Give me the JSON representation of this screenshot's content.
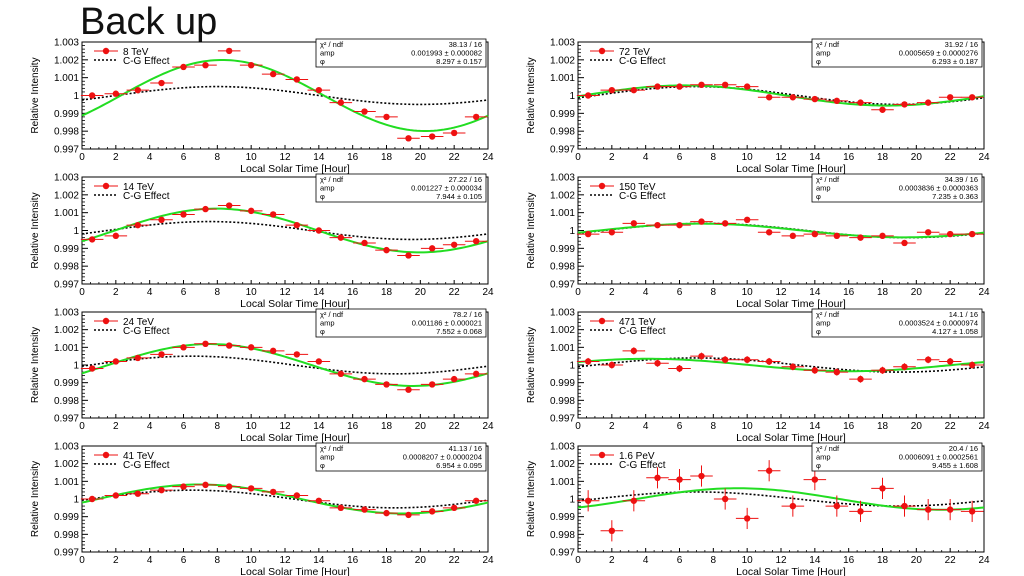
{
  "slide": {
    "title": "Back up"
  },
  "colors": {
    "fit": "#22dd22",
    "data": "#ee1111",
    "reference": "#000000",
    "axis": "#000000"
  },
  "chart_data": [
    {
      "type": "scatter",
      "energy": "8 TeV",
      "xlabel": "Local Solar Time [Hour]",
      "ylabel": "Relative Intensity",
      "xlim": [
        0,
        24
      ],
      "ylim": [
        0.997,
        1.003
      ],
      "xticks": [
        "0",
        "2",
        "4",
        "6",
        "8",
        "10",
        "12",
        "14",
        "16",
        "18",
        "20",
        "22",
        "24"
      ],
      "yticks": [
        "0.997",
        "0.998",
        "0.999",
        "1",
        "1.001",
        "1.002",
        "1.003"
      ],
      "legend": [
        "8 TeV",
        "C-G Effect"
      ],
      "stats": {
        "chi2_label": "χ² / ndf",
        "chi2": "38.13 / 16",
        "amp_label": "amp",
        "amp": "0.001993 ± 0.000082",
        "phi_label": "φ",
        "phi": "8.297 ± 0.157"
      },
      "fit": {
        "amp": 0.001993,
        "phase": 8.297
      },
      "cg": {
        "amp": 0.0005,
        "phase": 8.0
      },
      "x": [
        0.6,
        2.0,
        3.3,
        4.7,
        6.0,
        7.3,
        8.7,
        10.0,
        11.3,
        12.7,
        14.0,
        15.3,
        16.7,
        18.0,
        19.3,
        20.7,
        22.0,
        23.3
      ],
      "y": [
        1.0,
        1.0001,
        1.0003,
        1.0007,
        1.0016,
        1.0017,
        1.0025,
        1.0017,
        1.0012,
        1.0009,
        1.0003,
        0.9996,
        0.9991,
        0.9988,
        0.9976,
        0.9977,
        0.9979,
        0.9988
      ],
      "yerr": [
        0.0001,
        0.0001,
        0.0001,
        0.0001,
        0.0001,
        0.0001,
        0.0001,
        0.0001,
        0.0001,
        0.0001,
        0.0001,
        0.0001,
        0.0001,
        0.0001,
        0.0001,
        0.0001,
        0.0001,
        0.0001
      ]
    },
    {
      "type": "scatter",
      "energy": "72 TeV",
      "xlabel": "Local Solar Time [Hour]",
      "ylabel": "Relative Intensity",
      "xlim": [
        0,
        24
      ],
      "ylim": [
        0.997,
        1.003
      ],
      "xticks": [
        "0",
        "2",
        "4",
        "6",
        "8",
        "10",
        "12",
        "14",
        "16",
        "18",
        "20",
        "22",
        "24"
      ],
      "yticks": [
        "0.997",
        "0.998",
        "0.999",
        "1",
        "1.001",
        "1.002",
        "1.003"
      ],
      "legend": [
        "72 TeV",
        "C-G Effect"
      ],
      "stats": {
        "chi2_label": "χ² / ndf",
        "chi2": "31.92 / 16",
        "amp_label": "amp",
        "amp": "0.0005659 ± 0.0000276",
        "phi_label": "φ",
        "phi": "6.293 ± 0.187"
      },
      "fit": {
        "amp": 0.0005659,
        "phase": 6.293
      },
      "cg": {
        "amp": 0.0005,
        "phase": 7.0
      },
      "x": [
        0.6,
        2.0,
        3.3,
        4.7,
        6.0,
        7.3,
        8.7,
        10.0,
        11.3,
        12.7,
        14.0,
        15.3,
        16.7,
        18.0,
        19.3,
        20.7,
        22.0,
        23.3
      ],
      "y": [
        1.0,
        1.0003,
        1.0003,
        1.0005,
        1.0005,
        1.0006,
        1.0006,
        1.0005,
        0.9999,
        0.9999,
        0.9998,
        0.9997,
        0.9996,
        0.9992,
        0.9995,
        0.9996,
        0.9999,
        0.9999
      ],
      "yerr": [
        0.0001,
        0.0001,
        0.0001,
        0.0001,
        0.0001,
        0.0001,
        0.0001,
        0.0001,
        0.0001,
        0.0001,
        0.0001,
        0.0001,
        0.0001,
        0.0001,
        0.0001,
        0.0001,
        0.0001,
        0.0001
      ]
    },
    {
      "type": "scatter",
      "energy": "14 TeV",
      "xlabel": "Local Solar Time [Hour]",
      "ylabel": "Relative Intensity",
      "xlim": [
        0,
        24
      ],
      "ylim": [
        0.997,
        1.003
      ],
      "xticks": [
        "0",
        "2",
        "4",
        "6",
        "8",
        "10",
        "12",
        "14",
        "16",
        "18",
        "20",
        "22",
        "24"
      ],
      "yticks": [
        "0.997",
        "0.998",
        "0.999",
        "1",
        "1.001",
        "1.002",
        "1.003"
      ],
      "legend": [
        "14 TeV",
        "C-G Effect"
      ],
      "stats": {
        "chi2_label": "χ² / ndf",
        "chi2": "27.22 / 16",
        "amp_label": "amp",
        "amp": "0.001227 ± 0.000034",
        "phi_label": "φ",
        "phi": "7.944 ± 0.105"
      },
      "fit": {
        "amp": 0.001227,
        "phase": 7.944
      },
      "cg": {
        "amp": 0.0005,
        "phase": 7.5
      },
      "x": [
        0.6,
        2.0,
        3.3,
        4.7,
        6.0,
        7.3,
        8.7,
        10.0,
        11.3,
        12.7,
        14.0,
        15.3,
        16.7,
        18.0,
        19.3,
        20.7,
        22.0,
        23.3
      ],
      "y": [
        0.9995,
        0.9997,
        1.0003,
        1.0006,
        1.0009,
        1.0012,
        1.0014,
        1.0011,
        1.0009,
        1.0003,
        1.0,
        0.9996,
        0.9993,
        0.9989,
        0.9986,
        0.999,
        0.9992,
        0.9994
      ],
      "yerr": [
        0.0001,
        0.0001,
        0.0001,
        0.0001,
        0.0001,
        0.0001,
        0.0001,
        0.0001,
        0.0001,
        0.0001,
        0.0001,
        0.0001,
        0.0001,
        0.0001,
        0.0001,
        0.0001,
        0.0001,
        0.0001
      ]
    },
    {
      "type": "scatter",
      "energy": "150 TeV",
      "xlabel": "Local Solar Time [Hour]",
      "ylabel": "Relative Intensity",
      "xlim": [
        0,
        24
      ],
      "ylim": [
        0.997,
        1.003
      ],
      "xticks": [
        "0",
        "2",
        "4",
        "6",
        "8",
        "10",
        "12",
        "14",
        "16",
        "18",
        "20",
        "22",
        "24"
      ],
      "yticks": [
        "0.997",
        "0.998",
        "0.999",
        "1",
        "1.001",
        "1.002",
        "1.003"
      ],
      "legend": [
        "150 TeV",
        "C-G Effect"
      ],
      "stats": {
        "chi2_label": "χ² / ndf",
        "chi2": "34.39 / 16",
        "amp_label": "amp",
        "amp": "0.0003836 ± 0.0000363",
        "phi_label": "φ",
        "phi": "7.235 ± 0.363"
      },
      "fit": {
        "amp": 0.0003836,
        "phase": 7.235
      },
      "cg": {
        "amp": 0.0004,
        "phase": 7.5
      },
      "x": [
        0.6,
        2.0,
        3.3,
        4.7,
        6.0,
        7.3,
        8.7,
        10.0,
        11.3,
        12.7,
        14.0,
        15.3,
        16.7,
        18.0,
        19.3,
        20.7,
        22.0,
        23.3
      ],
      "y": [
        0.9998,
        0.9999,
        1.0004,
        1.0003,
        1.0003,
        1.0005,
        1.0004,
        1.0006,
        0.9999,
        0.9997,
        0.9998,
        0.9997,
        0.9996,
        0.9997,
        0.9993,
        0.9999,
        0.9998,
        0.9998
      ],
      "yerr": [
        0.0001,
        0.0001,
        0.0001,
        0.0001,
        0.0001,
        0.0001,
        0.0001,
        0.0001,
        0.0001,
        0.0001,
        0.0001,
        0.0001,
        0.0001,
        0.0001,
        0.0001,
        0.0001,
        0.0001,
        0.0001
      ]
    },
    {
      "type": "scatter",
      "energy": "24 TeV",
      "xlabel": "Local Solar Time [Hour]",
      "ylabel": "Relative Intensity",
      "xlim": [
        0,
        24
      ],
      "ylim": [
        0.997,
        1.003
      ],
      "xticks": [
        "0",
        "2",
        "4",
        "6",
        "8",
        "10",
        "12",
        "14",
        "16",
        "18",
        "20",
        "22",
        "24"
      ],
      "yticks": [
        "0.997",
        "0.998",
        "0.999",
        "1",
        "1.001",
        "1.002",
        "1.003"
      ],
      "legend": [
        "24 TeV",
        "C-G Effect"
      ],
      "stats": {
        "chi2_label": "χ² / ndf",
        "chi2": "78.2 / 16",
        "amp_label": "amp",
        "amp": "0.001186 ± 0.000021",
        "phi_label": "φ",
        "phi": "7.552 ± 0.068"
      },
      "fit": {
        "amp": 0.001186,
        "phase": 7.552
      },
      "cg": {
        "amp": 0.0005,
        "phase": 6.5
      },
      "x": [
        0.6,
        2.0,
        3.3,
        4.7,
        6.0,
        7.3,
        8.7,
        10.0,
        11.3,
        12.7,
        14.0,
        15.3,
        16.7,
        18.0,
        19.3,
        20.7,
        22.0,
        23.3
      ],
      "y": [
        0.9998,
        1.0002,
        1.0004,
        1.0006,
        1.001,
        1.0012,
        1.0011,
        1.001,
        1.0008,
        1.0006,
        1.0002,
        0.9995,
        0.9992,
        0.9989,
        0.9986,
        0.9989,
        0.9992,
        0.9995
      ],
      "yerr": [
        0.0001,
        0.0001,
        0.0001,
        0.0001,
        0.0001,
        0.0001,
        0.0001,
        0.0001,
        0.0001,
        0.0001,
        0.0001,
        0.0001,
        0.0001,
        0.0001,
        0.0001,
        0.0001,
        0.0001,
        0.0001
      ]
    },
    {
      "type": "scatter",
      "energy": "471 TeV",
      "xlabel": "Local Solar Time [Hour]",
      "ylabel": "Relative Intensity",
      "xlim": [
        0,
        24
      ],
      "ylim": [
        0.997,
        1.003
      ],
      "xticks": [
        "0",
        "2",
        "4",
        "6",
        "8",
        "10",
        "12",
        "14",
        "16",
        "18",
        "20",
        "22",
        "24"
      ],
      "yticks": [
        "0.997",
        "0.998",
        "0.999",
        "1",
        "1.001",
        "1.002",
        "1.003"
      ],
      "legend": [
        "471 TeV",
        "C-G Effect"
      ],
      "stats": {
        "chi2_label": "χ² / ndf",
        "chi2": "14.1 / 16",
        "amp_label": "amp",
        "amp": "0.0003524 ± 0.0000974",
        "phi_label": "φ",
        "phi": "4.127 ± 1.058"
      },
      "fit": {
        "amp": 0.0003524,
        "phase": 4.127
      },
      "cg": {
        "amp": 0.0004,
        "phase": 7.0
      },
      "x": [
        0.6,
        2.0,
        3.3,
        4.7,
        6.0,
        7.3,
        8.7,
        10.0,
        11.3,
        12.7,
        14.0,
        15.3,
        16.7,
        18.0,
        19.3,
        20.7,
        22.0,
        23.3
      ],
      "y": [
        1.0002,
        1.0,
        1.0008,
        1.0001,
        0.9998,
        1.0005,
        1.0003,
        1.0003,
        1.0002,
        0.9999,
        0.9997,
        0.9996,
        0.9992,
        0.9997,
        0.9999,
        1.0003,
        1.0002,
        1.0
      ],
      "yerr": [
        0.0002,
        0.0002,
        0.0002,
        0.0002,
        0.0002,
        0.0002,
        0.0002,
        0.0002,
        0.0002,
        0.0002,
        0.0002,
        0.0002,
        0.0002,
        0.0002,
        0.0002,
        0.0002,
        0.0002,
        0.0002
      ]
    },
    {
      "type": "scatter",
      "energy": "41 TeV",
      "xlabel": "Local Solar Time [Hour]",
      "ylabel": "Relative Intensity",
      "xlim": [
        0,
        24
      ],
      "ylim": [
        0.997,
        1.003
      ],
      "xticks": [
        "0",
        "2",
        "4",
        "6",
        "8",
        "10",
        "12",
        "14",
        "16",
        "18",
        "20",
        "22",
        "24"
      ],
      "yticks": [
        "0.997",
        "0.998",
        "0.999",
        "1",
        "1.001",
        "1.002",
        "1.003"
      ],
      "legend": [
        "41 TeV",
        "C-G Effect"
      ],
      "stats": {
        "chi2_label": "χ² / ndf",
        "chi2": "41.13 / 16",
        "amp_label": "amp",
        "amp": "0.0008207 ± 0.0000204",
        "phi_label": "φ",
        "phi": "6.954 ± 0.095"
      },
      "fit": {
        "amp": 0.0008207,
        "phase": 6.954
      },
      "cg": {
        "amp": 0.0005,
        "phase": 6.5
      },
      "x": [
        0.6,
        2.0,
        3.3,
        4.7,
        6.0,
        7.3,
        8.7,
        10.0,
        11.3,
        12.7,
        14.0,
        15.3,
        16.7,
        18.0,
        19.3,
        20.7,
        22.0,
        23.3
      ],
      "y": [
        1.0,
        1.0002,
        1.0003,
        1.0005,
        1.0007,
        1.0008,
        1.0007,
        1.0006,
        1.0004,
        1.0002,
        0.9999,
        0.9995,
        0.9994,
        0.9992,
        0.9991,
        0.9993,
        0.9995,
        0.9999
      ],
      "yerr": [
        0.0001,
        0.0001,
        0.0001,
        0.0001,
        0.0001,
        0.0001,
        0.0001,
        0.0001,
        0.0001,
        0.0001,
        0.0001,
        0.0001,
        0.0001,
        0.0001,
        0.0001,
        0.0001,
        0.0001,
        0.0001
      ]
    },
    {
      "type": "scatter",
      "energy": "1.6 PeV",
      "xlabel": "Local Solar Time [Hour]",
      "ylabel": "Relative Intensity",
      "xlim": [
        0,
        24
      ],
      "ylim": [
        0.997,
        1.003
      ],
      "xticks": [
        "0",
        "2",
        "4",
        "6",
        "8",
        "10",
        "12",
        "14",
        "16",
        "18",
        "20",
        "22",
        "24"
      ],
      "yticks": [
        "0.997",
        "0.998",
        "0.999",
        "1",
        "1.001",
        "1.002",
        "1.003"
      ],
      "legend": [
        "1.6 PeV",
        "C-G Effect"
      ],
      "stats": {
        "chi2_label": "χ² / ndf",
        "chi2": "20.4 / 16",
        "amp_label": "amp",
        "amp": "0.0006091 ± 0.0002561",
        "phi_label": "φ",
        "phi": "9.455 ± 1.608"
      },
      "fit": {
        "amp": 0.0006091,
        "phase": 9.455
      },
      "cg": {
        "amp": 0.0004,
        "phase": 7.0
      },
      "x": [
        0.6,
        2.0,
        3.3,
        4.7,
        6.0,
        7.3,
        8.7,
        10.0,
        11.3,
        12.7,
        14.0,
        15.3,
        16.7,
        18.0,
        19.3,
        20.7,
        22.0,
        23.3
      ],
      "y": [
        0.9999,
        0.9982,
        0.9999,
        1.0012,
        1.0011,
        1.0013,
        1.0,
        0.9989,
        1.0016,
        0.9996,
        1.0011,
        0.9996,
        0.9993,
        1.0006,
        0.9996,
        0.9994,
        0.9994,
        0.9993
      ],
      "yerr": [
        0.0006,
        0.0006,
        0.0006,
        0.0006,
        0.0006,
        0.0006,
        0.0006,
        0.0006,
        0.0006,
        0.0006,
        0.0006,
        0.0006,
        0.0006,
        0.0006,
        0.0006,
        0.0006,
        0.0006,
        0.0006
      ]
    }
  ]
}
